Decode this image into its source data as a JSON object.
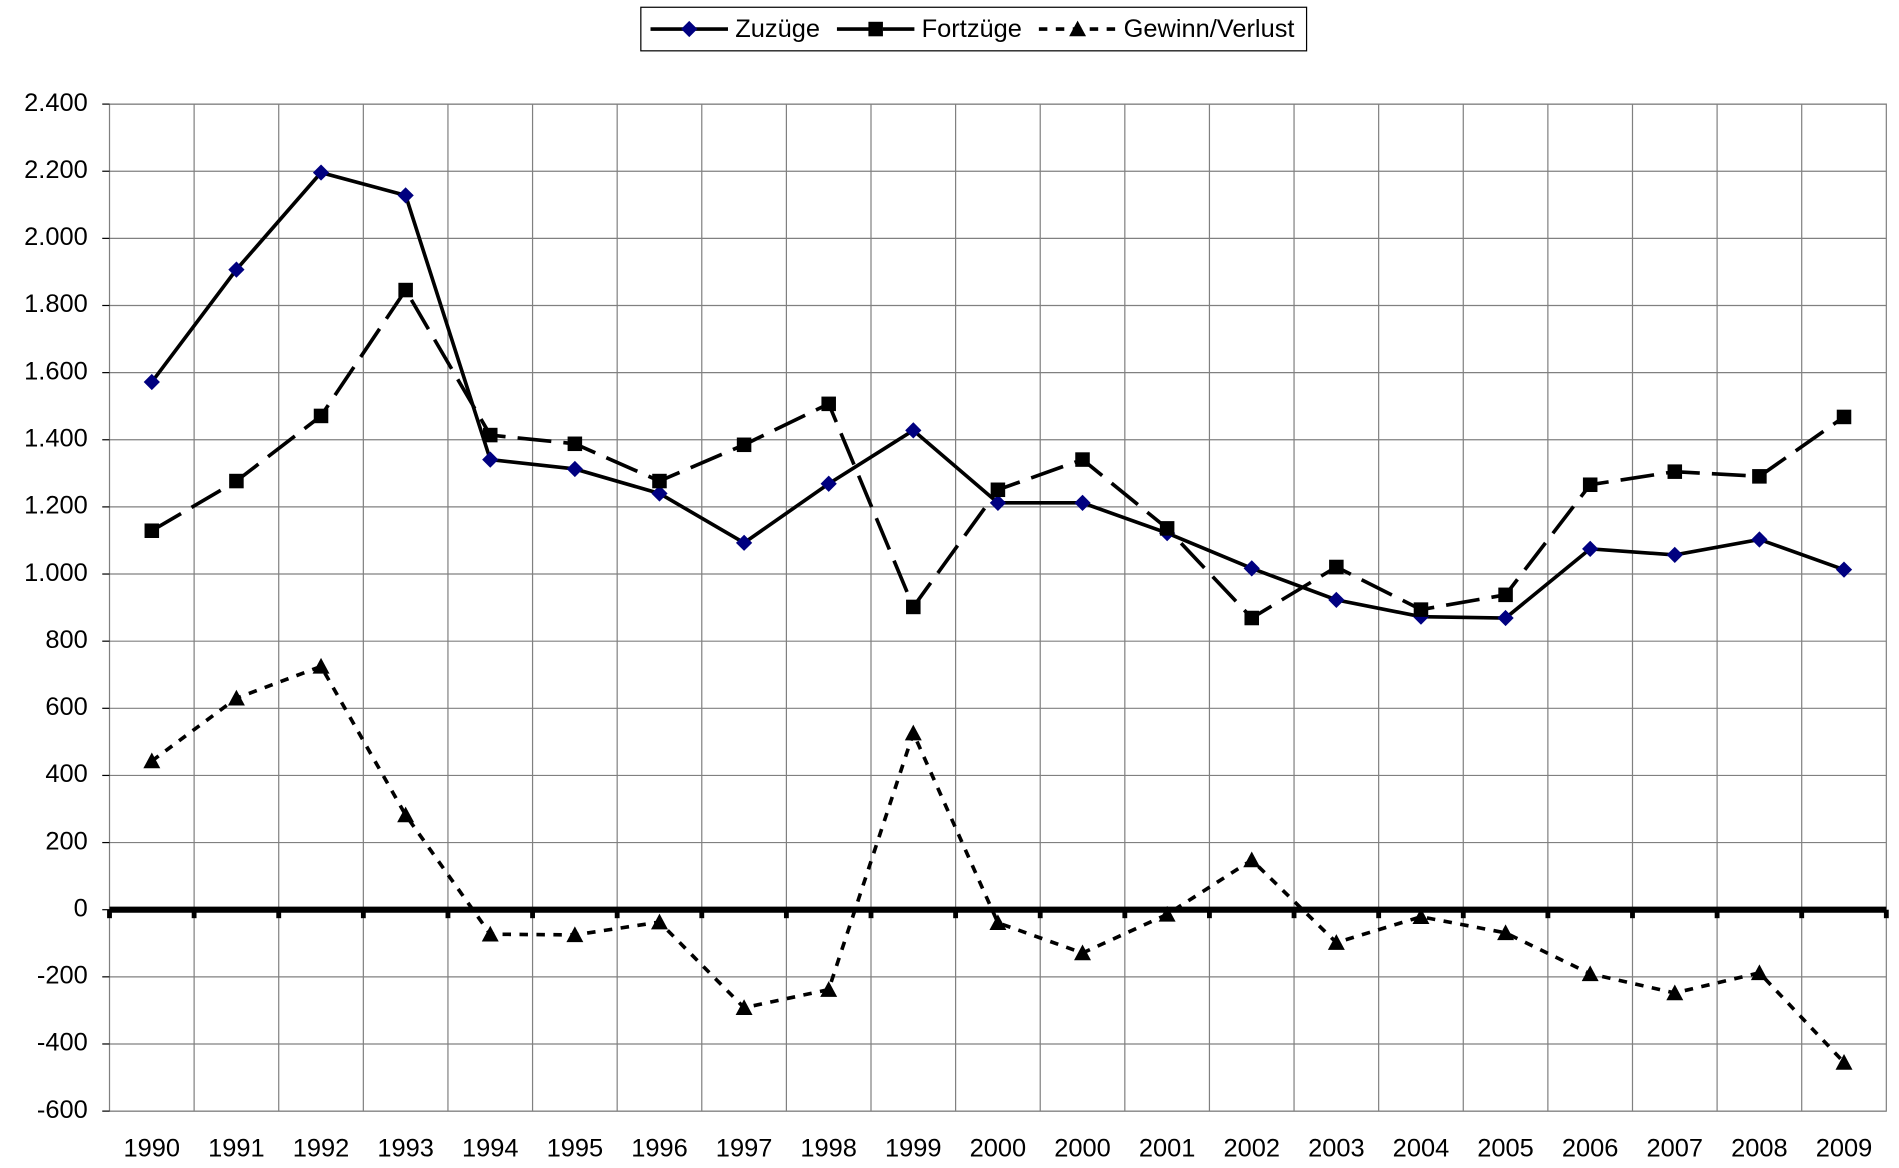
{
  "chart_data": {
    "type": "line",
    "categories": [
      "1990",
      "1991",
      "1992",
      "1993",
      "1994",
      "1995",
      "1996",
      "1997",
      "1998",
      "1999",
      "2000",
      "2000",
      "2001",
      "2002",
      "2003",
      "2004",
      "2005",
      "2006",
      "2007",
      "2008",
      "2009"
    ],
    "series": [
      {
        "name": "Zuzüge",
        "color": "#000000",
        "marker_color": "#000080",
        "marker": "diamond",
        "dash": "solid",
        "values": [
          1572,
          1907,
          2196,
          2128,
          1341,
          1313,
          1240,
          1093,
          1269,
          1428,
          1212,
          1212,
          1122,
          1017,
          923,
          873,
          869,
          1075,
          1057,
          1103,
          1013
        ]
      },
      {
        "name": "Fortzüge",
        "color": "#000000",
        "marker_color": "#000000",
        "marker": "square",
        "dash": "long",
        "values": [
          1129,
          1277,
          1471,
          1846,
          1414,
          1388,
          1277,
          1385,
          1507,
          902,
          1251,
          1341,
          1136,
          869,
          1021,
          894,
          938,
          1266,
          1305,
          1291,
          1468
        ]
      },
      {
        "name": "Gewinn/Verlust",
        "color": "#000000",
        "marker_color": "#000000",
        "marker": "triangle",
        "dash": "short",
        "values": [
          443,
          630,
          725,
          282,
          -73,
          -75,
          -37,
          -292,
          -238,
          526,
          -39,
          -129,
          -14,
          148,
          -98,
          -21,
          -69,
          -191,
          -248,
          -188,
          -455
        ]
      }
    ],
    "ylim": [
      -600,
      2400
    ],
    "yticks": [
      -600,
      -400,
      -200,
      0,
      200,
      400,
      600,
      800,
      {
        "value": 1000,
        "label": "1.000"
      },
      {
        "value": 1200,
        "label": "1.200"
      },
      {
        "value": 1400,
        "label": "1.400"
      },
      {
        "value": 1600,
        "label": "1.600"
      },
      {
        "value": 1800,
        "label": "1.800"
      },
      {
        "value": 2000,
        "label": "2.000"
      },
      {
        "value": 2200,
        "label": "2.200"
      },
      {
        "value": 2400,
        "label": "2.400"
      }
    ],
    "grid": true,
    "legend": "top"
  }
}
